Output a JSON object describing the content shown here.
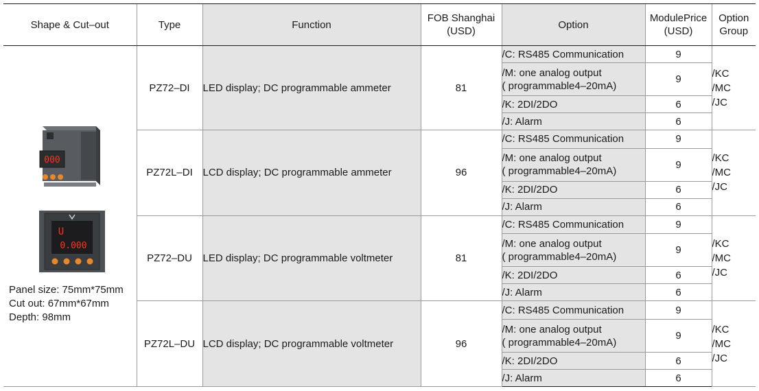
{
  "headers": {
    "shape": "Shape & Cut–out",
    "type": "Type",
    "function": "Function",
    "fob_line1": "FOB Shanghai",
    "fob_line2": "(USD)",
    "option": "Option",
    "module_line1": "ModulePrice",
    "module_line2": "(USD)",
    "group_line1": "Option",
    "group_line2": "Group"
  },
  "shape_info": {
    "panel_size": "Panel size: 75mm*75mm",
    "cut_out": "Cut out: 67mm*67mm",
    "depth": "Depth: 98mm",
    "device1_display": "000",
    "device2_display_top": "U",
    "device2_display_bottom": "0.000"
  },
  "products": [
    {
      "type": "PZ72–DI",
      "function": "LED display; DC programmable ammeter",
      "fob": "81",
      "options": [
        {
          "lines": [
            "/C: RS485 Communication"
          ],
          "price": "9"
        },
        {
          "lines": [
            "/M: one analog output",
            "( programmable4–20mA)"
          ],
          "price": "9"
        },
        {
          "lines": [
            "/K: 2DI/2DO"
          ],
          "price": "6"
        },
        {
          "lines": [
            "/J: Alarm"
          ],
          "price": "6"
        }
      ],
      "group": [
        "/KC",
        "/MC",
        "/JC"
      ]
    },
    {
      "type": "PZ72L–DI",
      "function": "LCD display; DC programmable ammeter",
      "fob": "96",
      "options": [
        {
          "lines": [
            "/C: RS485 Communication"
          ],
          "price": "9"
        },
        {
          "lines": [
            "/M: one analog output",
            "( programmable4–20mA)"
          ],
          "price": "9"
        },
        {
          "lines": [
            "/K: 2DI/2DO"
          ],
          "price": "6"
        },
        {
          "lines": [
            "/J: Alarm"
          ],
          "price": "6"
        }
      ],
      "group": [
        "/KC",
        "/MC",
        "/JC"
      ]
    },
    {
      "type": "PZ72–DU",
      "function": "LED display; DC programmable voltmeter",
      "fob": "81",
      "options": [
        {
          "lines": [
            "/C: RS485 Communication"
          ],
          "price": "9"
        },
        {
          "lines": [
            "/M: one analog output",
            "( programmable4–20mA)"
          ],
          "price": "9"
        },
        {
          "lines": [
            "/K: 2DI/2DO"
          ],
          "price": "6"
        },
        {
          "lines": [
            "/J: Alarm"
          ],
          "price": "6"
        }
      ],
      "group": [
        "/KC",
        "/MC",
        "/JC"
      ]
    },
    {
      "type": "PZ72L–DU",
      "function": "LCD display; DC programmable voltmeter",
      "fob": "96",
      "options": [
        {
          "lines": [
            "/C: RS485 Communication"
          ],
          "price": "9"
        },
        {
          "lines": [
            "/M: one analog output",
            "( programmable4–20mA)"
          ],
          "price": "9"
        },
        {
          "lines": [
            "/K: 2DI/2DO"
          ],
          "price": "6"
        },
        {
          "lines": [
            "/J: Alarm"
          ],
          "price": "6"
        }
      ],
      "group": [
        "/KC",
        "/MC",
        "/JC"
      ]
    }
  ],
  "colors": {
    "shaded_cell": "#e4e4e4",
    "grid_line": "#9a9a9a",
    "rule_line": "#1a1a1a",
    "led_red": "#ff3322"
  }
}
